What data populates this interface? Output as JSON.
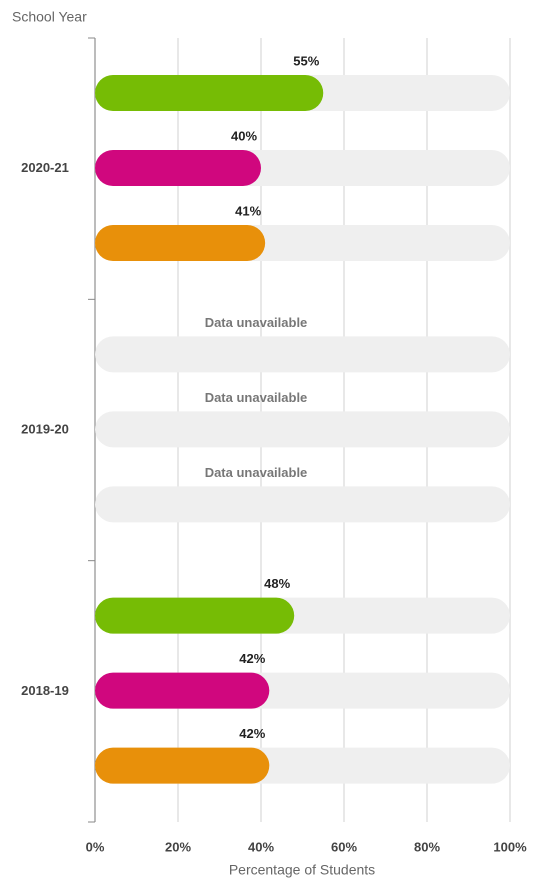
{
  "chart_data": {
    "type": "bar",
    "orientation": "horizontal",
    "y_axis_title": "School Year",
    "x_axis_title": "Percentage of Students",
    "categories": [
      "2020-21",
      "2019-20",
      "2018-19"
    ],
    "series": [
      {
        "color": "#76bc05",
        "values": [
          55,
          null,
          48
        ],
        "value_labels": [
          "55%",
          "Data unavailable",
          "48%"
        ]
      },
      {
        "color": "#d0077e",
        "values": [
          40,
          null,
          42
        ],
        "value_labels": [
          "40%",
          "Data unavailable",
          "42%"
        ]
      },
      {
        "color": "#e8900a",
        "values": [
          41,
          null,
          42
        ],
        "value_labels": [
          "41%",
          "Data unavailable",
          "42%"
        ]
      }
    ],
    "xlim": [
      0,
      100
    ],
    "xticks": [
      {
        "value": 0,
        "label": "0%"
      },
      {
        "value": 20,
        "label": "20%"
      },
      {
        "value": 40,
        "label": "40%"
      },
      {
        "value": 60,
        "label": "60%"
      },
      {
        "value": 80,
        "label": "80%"
      },
      {
        "value": 100,
        "label": "100%"
      }
    ],
    "grid": true
  }
}
